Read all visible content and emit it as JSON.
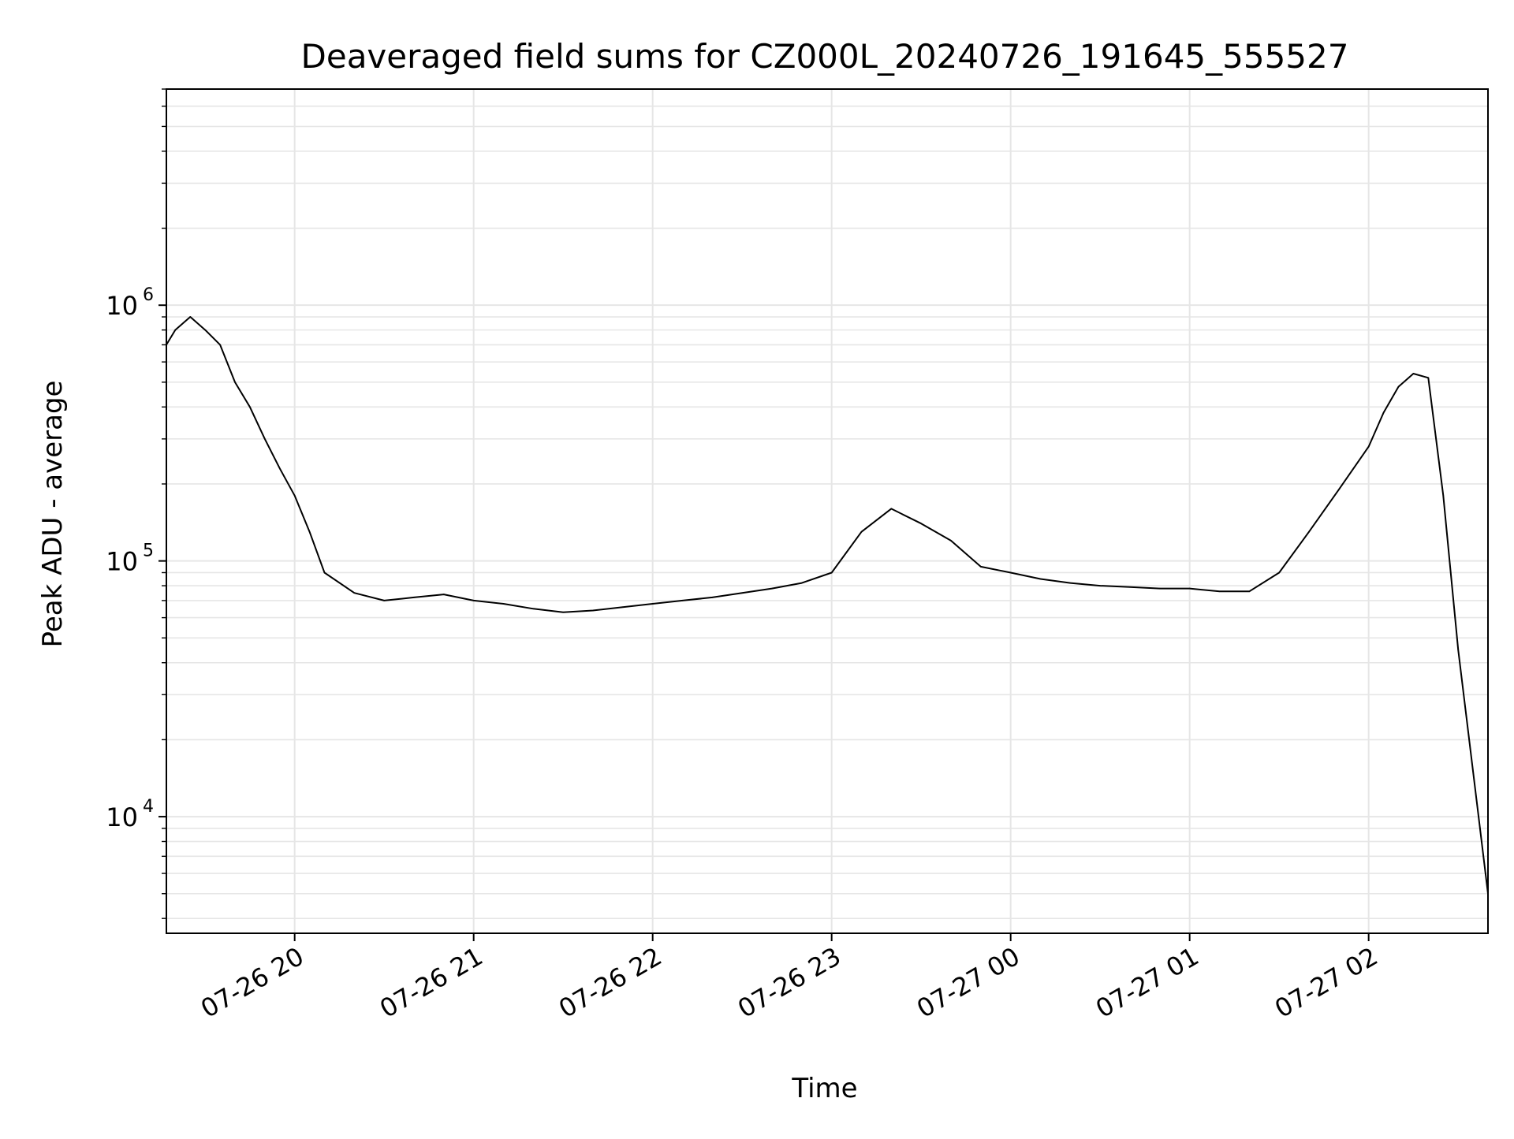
{
  "chart_data": {
    "type": "line",
    "title": "Deaveraged field sums for CZ000L_20240726_191645_555527",
    "xlabel": "Time",
    "ylabel": "Peak ADU - average",
    "xscale": "time",
    "yscale": "log",
    "xlim": [
      "2024-07-26 19:17",
      "2024-07-27 02:40"
    ],
    "ylim": [
      3500,
      7000000
    ],
    "x_ticks": [
      {
        "value": "2024-07-26 20:00",
        "label": "07-26 20"
      },
      {
        "value": "2024-07-26 21:00",
        "label": "07-26 21"
      },
      {
        "value": "2024-07-26 22:00",
        "label": "07-26 22"
      },
      {
        "value": "2024-07-26 23:00",
        "label": "07-26 23"
      },
      {
        "value": "2024-07-27 00:00",
        "label": "07-27 00"
      },
      {
        "value": "2024-07-27 01:00",
        "label": "07-27 01"
      },
      {
        "value": "2024-07-27 02:00",
        "label": "07-27 02"
      }
    ],
    "y_ticks": [
      {
        "value": 10000,
        "base": "10",
        "exp": "4"
      },
      {
        "value": 100000,
        "base": "10",
        "exp": "5"
      },
      {
        "value": 1000000,
        "base": "10",
        "exp": "6"
      }
    ],
    "grid": true,
    "line_color": "#000000",
    "grid_color": "#e6e6e6",
    "series": [
      {
        "x": [
          "2024-07-26 19:17",
          "2024-07-26 19:20",
          "2024-07-26 19:25",
          "2024-07-26 19:30",
          "2024-07-26 19:35",
          "2024-07-26 19:40",
          "2024-07-26 19:45",
          "2024-07-26 19:50",
          "2024-07-26 19:55",
          "2024-07-26 20:00",
          "2024-07-26 20:05",
          "2024-07-26 20:10",
          "2024-07-26 20:20",
          "2024-07-26 20:30",
          "2024-07-26 20:40",
          "2024-07-26 20:50",
          "2024-07-26 21:00",
          "2024-07-26 21:10",
          "2024-07-26 21:20",
          "2024-07-26 21:30",
          "2024-07-26 21:40",
          "2024-07-26 21:50",
          "2024-07-26 22:00",
          "2024-07-26 22:10",
          "2024-07-26 22:20",
          "2024-07-26 22:30",
          "2024-07-26 22:40",
          "2024-07-26 22:50",
          "2024-07-26 23:00",
          "2024-07-26 23:10",
          "2024-07-26 23:20",
          "2024-07-26 23:30",
          "2024-07-26 23:40",
          "2024-07-26 23:50",
          "2024-07-27 00:00",
          "2024-07-27 00:10",
          "2024-07-27 00:20",
          "2024-07-27 00:30",
          "2024-07-27 00:40",
          "2024-07-27 00:50",
          "2024-07-27 01:00",
          "2024-07-27 01:10",
          "2024-07-27 01:20",
          "2024-07-27 01:30",
          "2024-07-27 01:40",
          "2024-07-27 01:50",
          "2024-07-27 02:00",
          "2024-07-27 02:05",
          "2024-07-27 02:10",
          "2024-07-27 02:15",
          "2024-07-27 02:20",
          "2024-07-27 02:25",
          "2024-07-27 02:30",
          "2024-07-27 02:35",
          "2024-07-27 02:40"
        ],
        "values": [
          700000,
          800000,
          900000,
          800000,
          700000,
          500000,
          400000,
          300000,
          230000,
          180000,
          130000,
          90000,
          75000,
          70000,
          72000,
          74000,
          70000,
          68000,
          65000,
          63000,
          64000,
          66000,
          68000,
          70000,
          72000,
          75000,
          78000,
          82000,
          90000,
          130000,
          160000,
          140000,
          120000,
          95000,
          90000,
          85000,
          82000,
          80000,
          79000,
          78000,
          78000,
          76000,
          76000,
          90000,
          130000,
          190000,
          280000,
          380000,
          480000,
          540000,
          520000,
          180000,
          45000,
          15000,
          5000
        ]
      }
    ]
  }
}
